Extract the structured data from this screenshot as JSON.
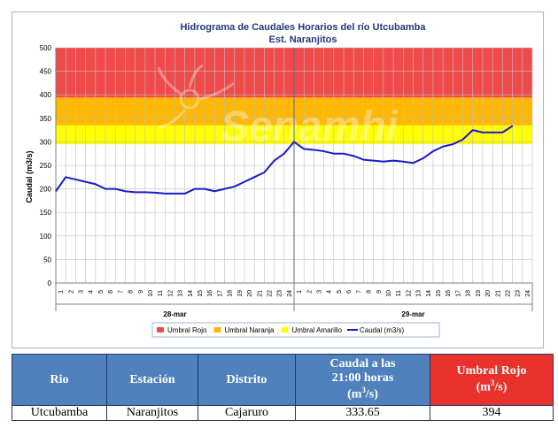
{
  "chart_data": {
    "type": "line",
    "title": "Hidrograma de Caudales Horarios del río Utcubamba",
    "subtitle": "Est. Naranjitos",
    "watermark": "Senamhi",
    "ylabel": "Caudal (m3/s)",
    "ylim": [
      0,
      500
    ],
    "yticks": [
      0,
      50,
      100,
      150,
      200,
      250,
      300,
      350,
      400,
      450,
      500
    ],
    "grid": true,
    "legend_position": "bottom",
    "days": [
      {
        "label": "28-mar",
        "hours": [
          "1",
          "2",
          "3",
          "4",
          "5",
          "6",
          "7",
          "8",
          "9",
          "10",
          "11",
          "12",
          "13",
          "14",
          "15",
          "16",
          "17",
          "18",
          "19",
          "20",
          "21",
          "22",
          "23",
          "24"
        ]
      },
      {
        "label": "29-mar",
        "hours": [
          "1",
          "2",
          "3",
          "4",
          "5",
          "6",
          "7",
          "8",
          "9",
          "10",
          "11",
          "12",
          "13",
          "14",
          "15",
          "16",
          "17",
          "18",
          "19",
          "20",
          "21",
          "22",
          "23",
          "24"
        ]
      }
    ],
    "bands": [
      {
        "name": "Umbral Rojo",
        "from": 394,
        "to": 500,
        "color": "#f04a4a"
      },
      {
        "name": "Umbral Naranja",
        "from": 335,
        "to": 394,
        "color": "#ffb800"
      },
      {
        "name": "Umbral Amarillo",
        "from": 295,
        "to": 335,
        "color": "#ffff00"
      }
    ],
    "series": [
      {
        "name": "Caudal (m3/s)",
        "color": "#1a1acc",
        "values": [
          195,
          225,
          220,
          215,
          210,
          200,
          200,
          195,
          193,
          193,
          192,
          190,
          190,
          190,
          200,
          200,
          195,
          200,
          205,
          215,
          225,
          235,
          260,
          275,
          300,
          285,
          283,
          280,
          275,
          275,
          270,
          262,
          260,
          258,
          260,
          258,
          255,
          265,
          280,
          290,
          295,
          305,
          325,
          320,
          320,
          320,
          333.65
        ]
      }
    ]
  },
  "table": {
    "headers": {
      "rio": "Rio",
      "estacion": "Estación",
      "distrito": "Distrito",
      "caudal_line1": "Caudal a las",
      "caudal_line2": "21:00 horas",
      "caudal_unit": "(m",
      "caudal_unit_sup": "3",
      "caudal_unit_end": "/s)",
      "umbral_line1": "Umbral Rojo",
      "umbral_unit": "(m",
      "umbral_unit_sup": "3",
      "umbral_unit_end": "/s)"
    },
    "row": {
      "rio": "Utcubamba",
      "estacion": "Naranjitos",
      "distrito": "Cajaruro",
      "caudal": "333.65",
      "umbral": "394"
    },
    "colors": {
      "header_blue": "#4f81bd",
      "header_red": "#e8322b"
    }
  }
}
